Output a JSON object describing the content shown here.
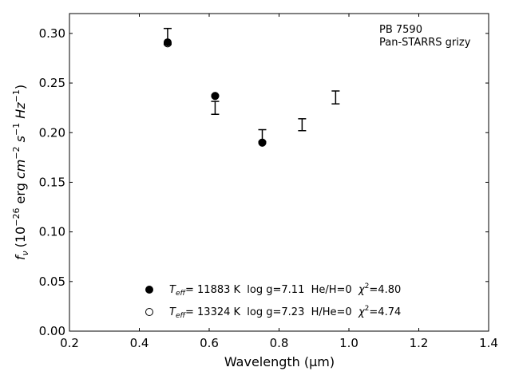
{
  "chart_data": {
    "type": "scatter",
    "xlabel": "Wavelength (μm)",
    "ylabel_parts": {
      "f": "f",
      "f_sub": "ν",
      "open": "(10",
      "exp1": "−26",
      "mid": " erg ",
      "cm": "cm",
      "exp2": "−2",
      "s": " s",
      "exp3": "−1",
      "hz": " Hz",
      "exp4": "−1",
      "close": ")"
    },
    "xlim": [
      0.2,
      1.4
    ],
    "ylim": [
      0.0,
      0.32
    ],
    "x_ticks": [
      "0.2",
      "0.4",
      "0.6",
      "0.8",
      "1.0",
      "1.2",
      "1.4"
    ],
    "y_ticks": [
      "0.00",
      "0.05",
      "0.10",
      "0.15",
      "0.20",
      "0.25",
      "0.30"
    ],
    "annotation": [
      "PB 7590",
      "Pan-STARRS grizy"
    ],
    "observed": [
      {
        "x": 0.481,
        "y": 0.297,
        "yerr": 0.008
      },
      {
        "x": 0.617,
        "y": 0.225,
        "yerr": 0.0065
      },
      {
        "x": 0.752,
        "y": 0.197,
        "yerr": 0.006
      },
      {
        "x": 0.866,
        "y": 0.208,
        "yerr": 0.006
      },
      {
        "x": 0.962,
        "y": 0.2355,
        "yerr": 0.0065
      }
    ],
    "series": [
      {
        "marker": "filled-circle",
        "points": [
          {
            "x": 0.481,
            "y": 0.291
          },
          {
            "x": 0.617,
            "y": 0.237
          },
          {
            "x": 0.752,
            "y": 0.19
          }
        ]
      },
      {
        "marker": "open-circle",
        "points": [
          {
            "x": 0.481,
            "y": 0.29
          },
          {
            "x": 0.617,
            "y": 0.237
          },
          {
            "x": 0.752,
            "y": 0.19
          }
        ]
      }
    ],
    "legend": [
      {
        "marker": "filled-circle",
        "T": "T",
        "T_sub": "eff",
        "text": "= 11883 K  log g=7.11  He/H=0  ",
        "chi": "χ",
        "chi_sup": "2",
        "chi_val": "=4.80"
      },
      {
        "marker": "open-circle",
        "T": "T",
        "T_sub": "eff",
        "text": "= 13324 K  log g=7.23  H/He=0  ",
        "chi": "χ",
        "chi_sup": "2",
        "chi_val": "=4.74"
      }
    ],
    "legend_position": "bottom-center"
  }
}
